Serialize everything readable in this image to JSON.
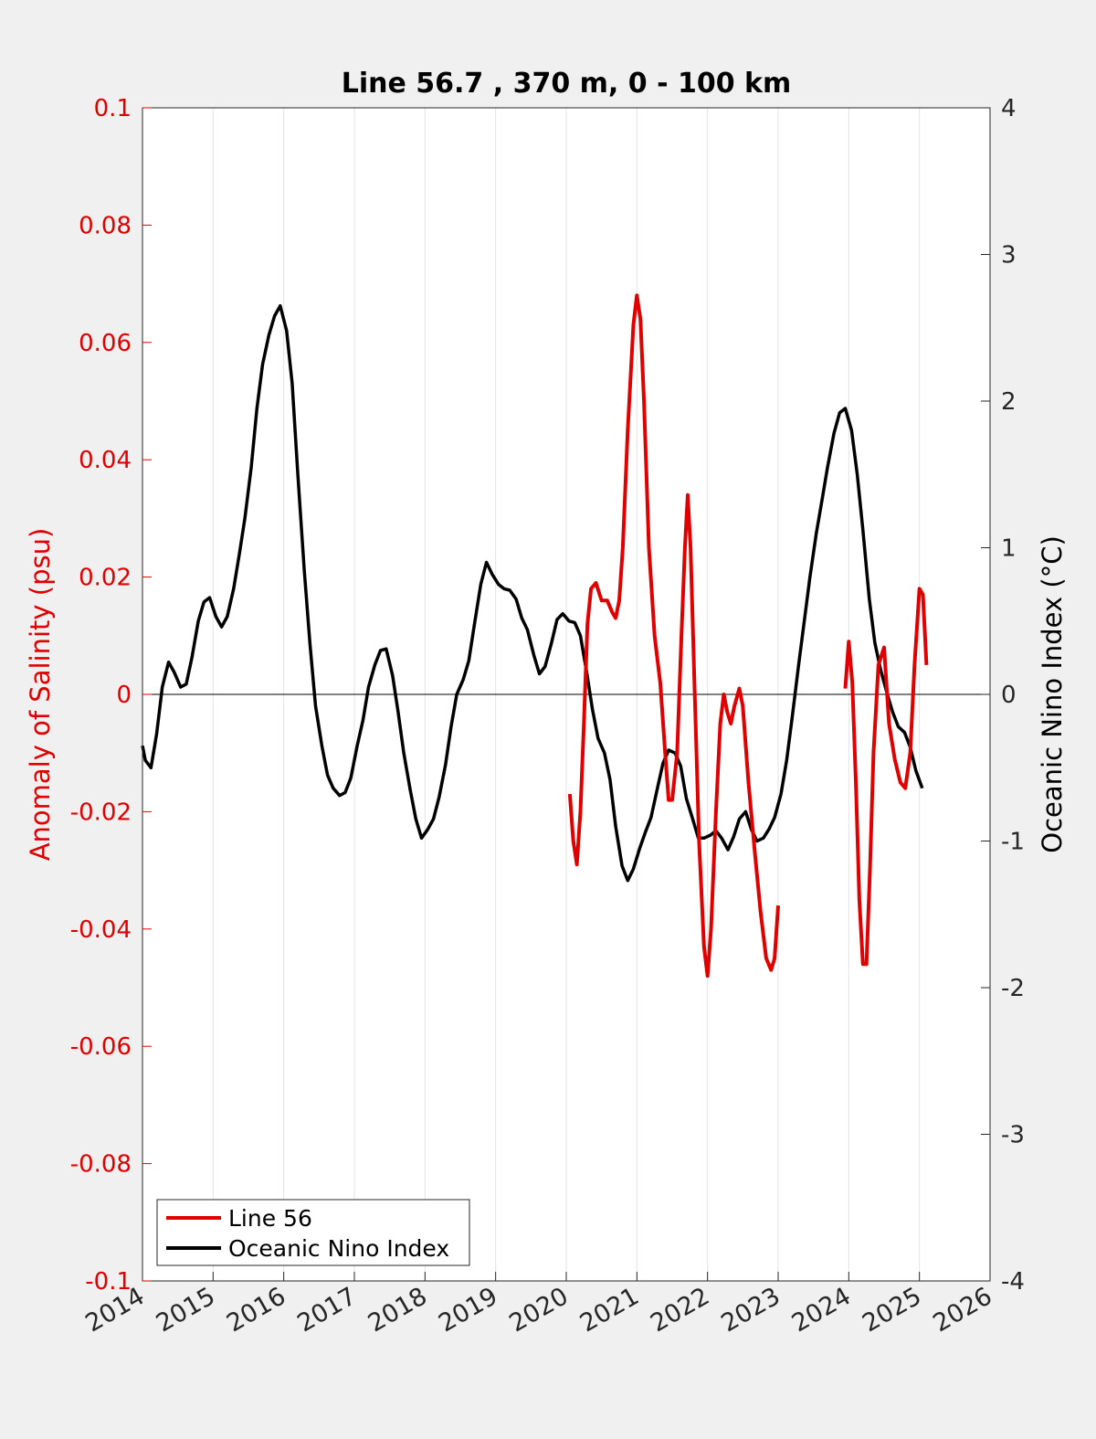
{
  "chart_data": {
    "type": "line",
    "title": "Line 56.7 , 370 m, 0 - 100 km",
    "xlabel": "",
    "ylabel_left": "Anomaly of Salinity (psu)",
    "ylabel_right": "Oceanic Nino Index (°C)",
    "xlim": [
      2014,
      2026
    ],
    "ylim_left": [
      -0.1,
      0.1
    ],
    "ylim_right": [
      -4,
      4
    ],
    "x_ticks": [
      "2014",
      "2015",
      "2016",
      "2017",
      "2018",
      "2019",
      "2020",
      "2021",
      "2022",
      "2023",
      "2024",
      "2025",
      "2026"
    ],
    "y_left_ticks": [
      "0.1",
      "0.08",
      "0.06",
      "0.04",
      "0.02",
      "0",
      "-0.02",
      "-0.04",
      "-0.06",
      "-0.08",
      "-0.1"
    ],
    "y_right_ticks": [
      "4",
      "3",
      "2",
      "1",
      "0",
      "-1",
      "-2",
      "-3",
      "-4"
    ],
    "grid": "vertical",
    "legend_position": "bottom-left",
    "colors": {
      "left_axis": "#e00000",
      "line56": "#e00000",
      "oni": "#000000"
    },
    "series": [
      {
        "name": "Line 56",
        "axis": "left",
        "segments": [
          [
            [
              2020.05,
              -0.017
            ],
            [
              2020.1,
              -0.025
            ],
            [
              2020.15,
              -0.029
            ],
            [
              2020.2,
              -0.02
            ],
            [
              2020.25,
              -0.005
            ],
            [
              2020.3,
              0.012
            ],
            [
              2020.35,
              0.018
            ],
            [
              2020.42,
              0.019
            ],
            [
              2020.5,
              0.016
            ],
            [
              2020.58,
              0.016
            ],
            [
              2020.65,
              0.014
            ],
            [
              2020.7,
              0.013
            ],
            [
              2020.75,
              0.016
            ],
            [
              2020.8,
              0.025
            ],
            [
              2020.87,
              0.045
            ],
            [
              2020.95,
              0.063
            ],
            [
              2021.0,
              0.068
            ],
            [
              2021.05,
              0.064
            ],
            [
              2021.1,
              0.05
            ],
            [
              2021.17,
              0.025
            ],
            [
              2021.25,
              0.01
            ],
            [
              2021.33,
              0.002
            ],
            [
              2021.4,
              -0.01
            ],
            [
              2021.45,
              -0.018
            ],
            [
              2021.5,
              -0.018
            ],
            [
              2021.57,
              -0.01
            ],
            [
              2021.63,
              0.01
            ],
            [
              2021.68,
              0.025
            ],
            [
              2021.72,
              0.034
            ],
            [
              2021.76,
              0.025
            ],
            [
              2021.82,
              0.0
            ],
            [
              2021.88,
              -0.025
            ],
            [
              2021.95,
              -0.043
            ],
            [
              2022.0,
              -0.048
            ],
            [
              2022.05,
              -0.04
            ],
            [
              2022.12,
              -0.02
            ],
            [
              2022.18,
              -0.005
            ],
            [
              2022.23,
              0.0
            ],
            [
              2022.28,
              -0.003
            ],
            [
              2022.33,
              -0.005
            ],
            [
              2022.38,
              -0.002
            ],
            [
              2022.45,
              0.001
            ],
            [
              2022.5,
              -0.002
            ],
            [
              2022.58,
              -0.015
            ],
            [
              2022.67,
              -0.027
            ],
            [
              2022.75,
              -0.037
            ],
            [
              2022.83,
              -0.045
            ],
            [
              2022.9,
              -0.047
            ],
            [
              2022.95,
              -0.045
            ],
            [
              2023.0,
              -0.036
            ]
          ],
          [
            [
              2023.95,
              0.001
            ],
            [
              2024.0,
              0.009
            ],
            [
              2024.05,
              0.002
            ],
            [
              2024.1,
              -0.015
            ],
            [
              2024.15,
              -0.035
            ],
            [
              2024.2,
              -0.046
            ],
            [
              2024.25,
              -0.046
            ],
            [
              2024.3,
              -0.03
            ],
            [
              2024.35,
              -0.01
            ],
            [
              2024.42,
              0.005
            ],
            [
              2024.5,
              0.008
            ],
            [
              2024.57,
              -0.005
            ],
            [
              2024.65,
              -0.011
            ],
            [
              2024.73,
              -0.015
            ],
            [
              2024.8,
              -0.016
            ],
            [
              2024.87,
              -0.01
            ],
            [
              2024.93,
              0.005
            ],
            [
              2025.0,
              0.018
            ],
            [
              2025.05,
              0.017
            ],
            [
              2025.1,
              0.005
            ]
          ]
        ]
      },
      {
        "name": "Oceanic Nino Index",
        "axis": "right",
        "points": [
          [
            2014.0,
            -0.35
          ],
          [
            2014.04,
            -0.45
          ],
          [
            2014.12,
            -0.5
          ],
          [
            2014.2,
            -0.27
          ],
          [
            2014.28,
            0.05
          ],
          [
            2014.37,
            0.22
          ],
          [
            2014.45,
            0.15
          ],
          [
            2014.54,
            0.05
          ],
          [
            2014.62,
            0.07
          ],
          [
            2014.7,
            0.25
          ],
          [
            2014.79,
            0.5
          ],
          [
            2014.87,
            0.63
          ],
          [
            2014.95,
            0.66
          ],
          [
            2015.04,
            0.53
          ],
          [
            2015.12,
            0.46
          ],
          [
            2015.2,
            0.53
          ],
          [
            2015.29,
            0.72
          ],
          [
            2015.37,
            0.95
          ],
          [
            2015.45,
            1.2
          ],
          [
            2015.54,
            1.55
          ],
          [
            2015.62,
            1.95
          ],
          [
            2015.7,
            2.25
          ],
          [
            2015.79,
            2.45
          ],
          [
            2015.87,
            2.58
          ],
          [
            2015.95,
            2.65
          ],
          [
            2016.04,
            2.48
          ],
          [
            2016.12,
            2.12
          ],
          [
            2016.2,
            1.5
          ],
          [
            2016.29,
            0.85
          ],
          [
            2016.37,
            0.35
          ],
          [
            2016.45,
            -0.08
          ],
          [
            2016.54,
            -0.35
          ],
          [
            2016.62,
            -0.55
          ],
          [
            2016.7,
            -0.64
          ],
          [
            2016.79,
            -0.69
          ],
          [
            2016.87,
            -0.67
          ],
          [
            2016.95,
            -0.57
          ],
          [
            2017.04,
            -0.35
          ],
          [
            2017.12,
            -0.18
          ],
          [
            2017.2,
            0.05
          ],
          [
            2017.29,
            0.2
          ],
          [
            2017.37,
            0.3
          ],
          [
            2017.45,
            0.31
          ],
          [
            2017.54,
            0.13
          ],
          [
            2017.62,
            -0.12
          ],
          [
            2017.7,
            -0.4
          ],
          [
            2017.79,
            -0.65
          ],
          [
            2017.87,
            -0.85
          ],
          [
            2017.95,
            -0.98
          ],
          [
            2018.04,
            -0.92
          ],
          [
            2018.12,
            -0.85
          ],
          [
            2018.2,
            -0.7
          ],
          [
            2018.29,
            -0.48
          ],
          [
            2018.37,
            -0.22
          ],
          [
            2018.45,
            0.0
          ],
          [
            2018.54,
            0.1
          ],
          [
            2018.62,
            0.23
          ],
          [
            2018.7,
            0.48
          ],
          [
            2018.79,
            0.75
          ],
          [
            2018.87,
            0.9
          ],
          [
            2018.95,
            0.82
          ],
          [
            2019.04,
            0.75
          ],
          [
            2019.12,
            0.72
          ],
          [
            2019.2,
            0.71
          ],
          [
            2019.29,
            0.65
          ],
          [
            2019.37,
            0.52
          ],
          [
            2019.45,
            0.44
          ],
          [
            2019.54,
            0.27
          ],
          [
            2019.62,
            0.14
          ],
          [
            2019.7,
            0.19
          ],
          [
            2019.79,
            0.35
          ],
          [
            2019.87,
            0.51
          ],
          [
            2019.95,
            0.55
          ],
          [
            2020.04,
            0.5
          ],
          [
            2020.12,
            0.49
          ],
          [
            2020.2,
            0.4
          ],
          [
            2020.29,
            0.15
          ],
          [
            2020.37,
            -0.1
          ],
          [
            2020.45,
            -0.3
          ],
          [
            2020.54,
            -0.4
          ],
          [
            2020.62,
            -0.58
          ],
          [
            2020.7,
            -0.9
          ],
          [
            2020.79,
            -1.17
          ],
          [
            2020.87,
            -1.27
          ],
          [
            2020.95,
            -1.19
          ],
          [
            2021.04,
            -1.05
          ],
          [
            2021.12,
            -0.94
          ],
          [
            2021.2,
            -0.84
          ],
          [
            2021.29,
            -0.64
          ],
          [
            2021.37,
            -0.47
          ],
          [
            2021.45,
            -0.38
          ],
          [
            2021.54,
            -0.4
          ],
          [
            2021.62,
            -0.49
          ],
          [
            2021.7,
            -0.71
          ],
          [
            2021.79,
            -0.85
          ],
          [
            2021.87,
            -0.98
          ],
          [
            2021.95,
            -0.98
          ],
          [
            2022.04,
            -0.96
          ],
          [
            2022.12,
            -0.93
          ],
          [
            2022.2,
            -0.98
          ],
          [
            2022.29,
            -1.06
          ],
          [
            2022.37,
            -0.97
          ],
          [
            2022.45,
            -0.85
          ],
          [
            2022.54,
            -0.8
          ],
          [
            2022.62,
            -0.92
          ],
          [
            2022.7,
            -1.0
          ],
          [
            2022.79,
            -0.98
          ],
          [
            2022.87,
            -0.92
          ],
          [
            2022.95,
            -0.84
          ],
          [
            2023.04,
            -0.68
          ],
          [
            2023.12,
            -0.45
          ],
          [
            2023.2,
            -0.15
          ],
          [
            2023.29,
            0.2
          ],
          [
            2023.37,
            0.5
          ],
          [
            2023.45,
            0.8
          ],
          [
            2023.54,
            1.1
          ],
          [
            2023.62,
            1.32
          ],
          [
            2023.7,
            1.55
          ],
          [
            2023.79,
            1.78
          ],
          [
            2023.87,
            1.92
          ],
          [
            2023.95,
            1.95
          ],
          [
            2024.04,
            1.8
          ],
          [
            2024.12,
            1.5
          ],
          [
            2024.2,
            1.12
          ],
          [
            2024.29,
            0.65
          ],
          [
            2024.37,
            0.35
          ],
          [
            2024.45,
            0.17
          ],
          [
            2024.54,
            0.01
          ],
          [
            2024.62,
            -0.12
          ],
          [
            2024.7,
            -0.22
          ],
          [
            2024.79,
            -0.26
          ],
          [
            2024.87,
            -0.36
          ],
          [
            2024.95,
            -0.52
          ],
          [
            2025.04,
            -0.64
          ]
        ]
      }
    ]
  }
}
